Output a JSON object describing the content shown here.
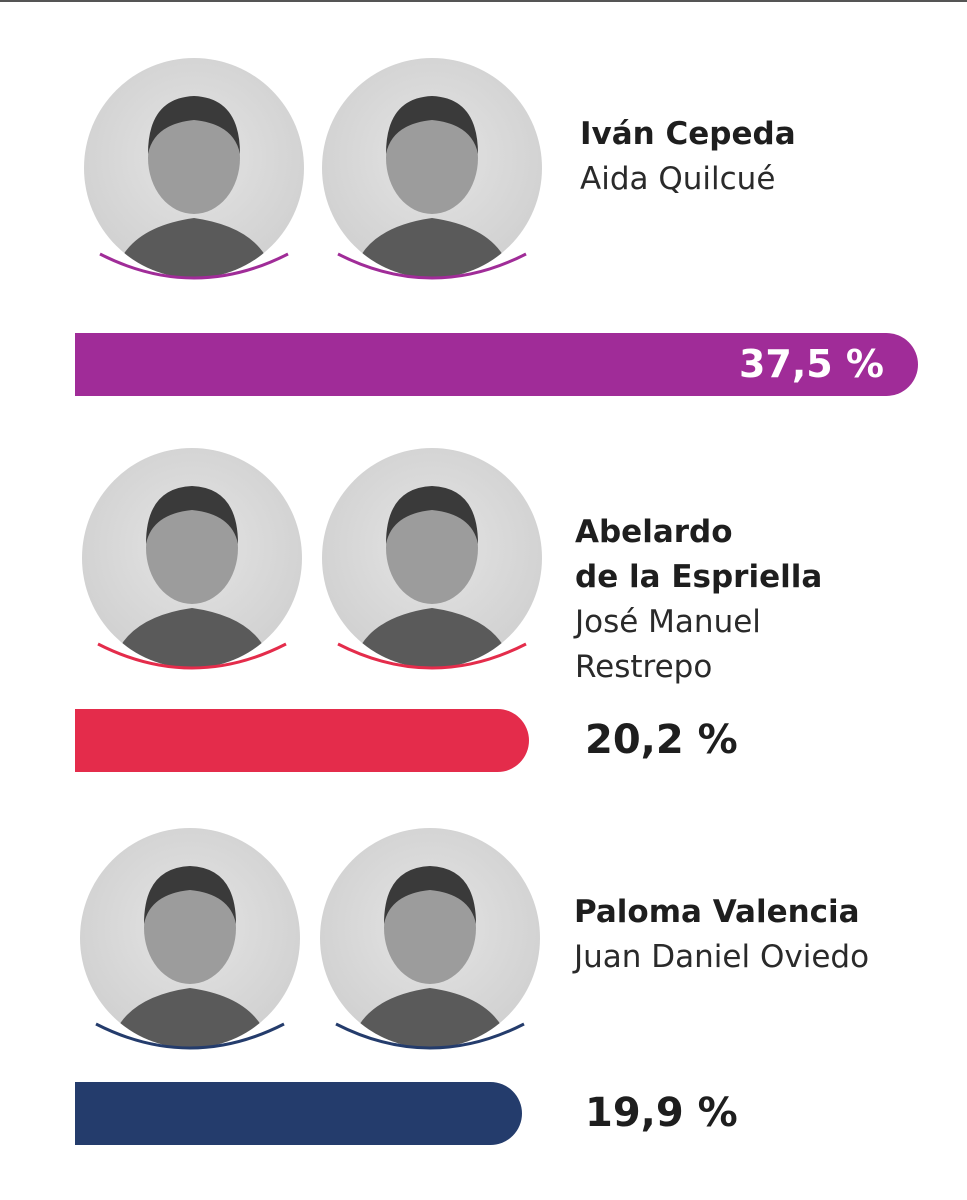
{
  "chart_data": {
    "type": "bar",
    "orientation": "horizontal",
    "categories": [
      "Iván Cepeda / Aida Quilcué",
      "Abelardo de la Espriella / José Manuel Restrepo",
      "Paloma Valencia / Juan Daniel Oviedo"
    ],
    "values": [
      37.5,
      20.2,
      19.9
    ],
    "value_labels": [
      "37,5 %",
      "20,2 %",
      "19,9 %"
    ],
    "colors": [
      "#a02c98",
      "#e42c4b",
      "#243c6c"
    ],
    "xlim": [
      0,
      37.5
    ],
    "grid": false,
    "legend": "none"
  },
  "tickets": [
    {
      "presidential": "Iván Cepeda",
      "vice_lines": [
        "Aida Quilcué"
      ],
      "value": 37.5,
      "label": "37,5 %",
      "color": "#a02c98",
      "icons": [
        "candidate-portrait-icon",
        "candidate-portrait-icon"
      ]
    },
    {
      "presidential_lines": [
        "Abelardo",
        "de la Espriella"
      ],
      "vice_lines": [
        "José Manuel",
        "Restrepo"
      ],
      "value": 20.2,
      "label": "20,2 %",
      "color": "#e42c4b",
      "icons": [
        "candidate-portrait-icon",
        "candidate-portrait-icon"
      ]
    },
    {
      "presidential": "Paloma Valencia",
      "vice_lines": [
        "Juan Daniel Oviedo"
      ],
      "value": 19.9,
      "label": "19,9 %",
      "color": "#243c6c",
      "icons": [
        "candidate-portrait-icon",
        "candidate-portrait-icon"
      ]
    }
  ]
}
